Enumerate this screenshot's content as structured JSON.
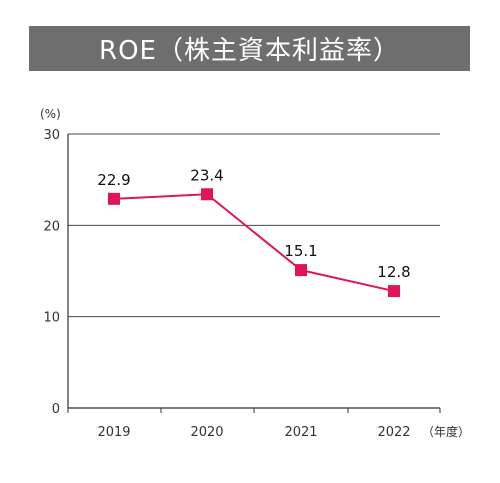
{
  "title": "ROE（株主資本利益率）",
  "colors": {
    "series": "#e0145a",
    "axis": "#333333",
    "banner": "#6e6e6e"
  },
  "chart_data": {
    "type": "line",
    "title": "ROE（株主資本利益率）",
    "y_unit_label": "(%)",
    "x_unit_label": "（年度）",
    "categories": [
      "2019",
      "2020",
      "2021",
      "2022"
    ],
    "series": [
      {
        "values": [
          22.9,
          23.4,
          15.1,
          12.8
        ],
        "data_labels": [
          "22.9",
          "23.4",
          "15.1",
          "12.8"
        ]
      }
    ],
    "ylim": [
      0,
      30
    ],
    "y_ticks": [
      0,
      10,
      20,
      30
    ],
    "grid": true,
    "legend": "none"
  }
}
